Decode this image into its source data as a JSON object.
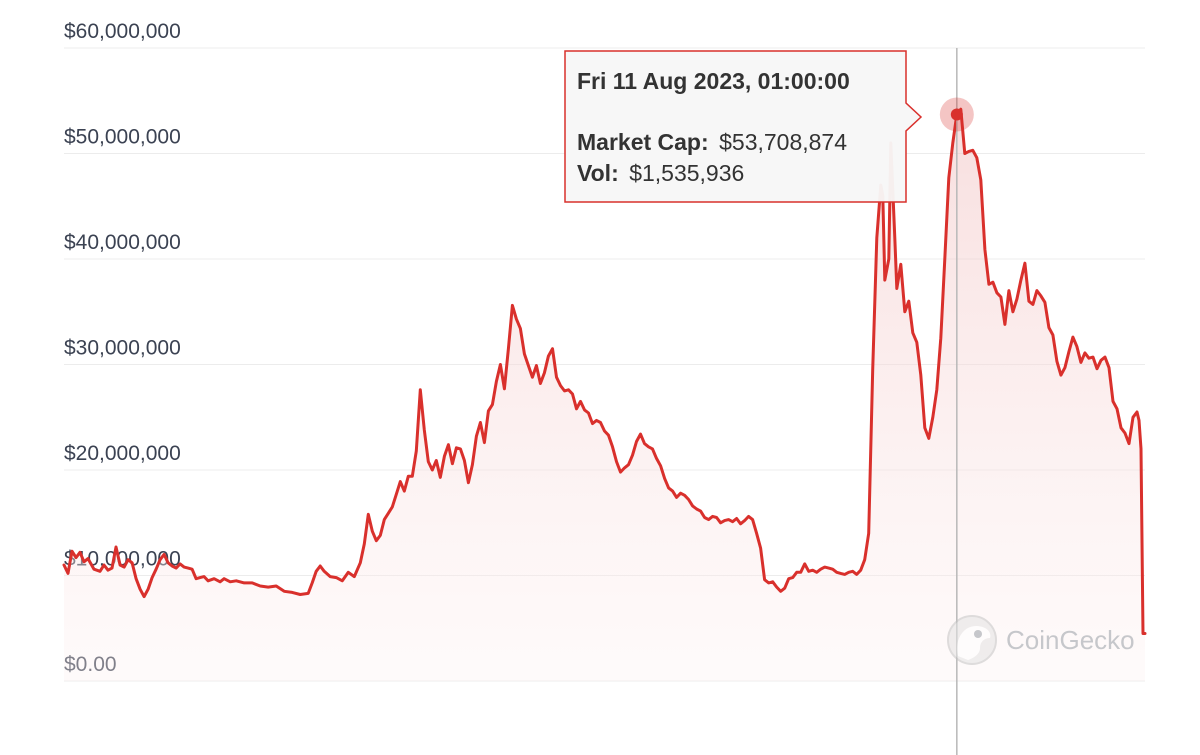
{
  "chart_data": {
    "type": "area",
    "y_ticks": [
      {
        "value": 0,
        "label": "$0.00"
      },
      {
        "value": 10000000,
        "label": "$10,000,000"
      },
      {
        "value": 20000000,
        "label": "$20,000,000"
      },
      {
        "value": 30000000,
        "label": "$30,000,000"
      },
      {
        "value": 40000000,
        "label": "$40,000,000"
      },
      {
        "value": 50000000,
        "label": "$50,000,000"
      },
      {
        "value": 60000000,
        "label": "$60,000,000"
      }
    ],
    "ylim": [
      0,
      60000000
    ],
    "x_index_range": [
      0,
      540
    ],
    "grid": true,
    "series": [
      {
        "color": "#d9302c",
        "fill": "#f6d6d6",
        "points": [
          [
            0,
            11000000
          ],
          [
            2,
            10200000
          ],
          [
            4,
            12300000
          ],
          [
            6,
            11700000
          ],
          [
            8,
            12200000
          ],
          [
            10,
            11300000
          ],
          [
            12,
            11600000
          ],
          [
            15,
            10600000
          ],
          [
            18,
            10400000
          ],
          [
            20,
            11000000
          ],
          [
            22,
            10500000
          ],
          [
            24,
            10700000
          ],
          [
            26,
            12700000
          ],
          [
            28,
            11000000
          ],
          [
            30,
            10800000
          ],
          [
            32,
            11500000
          ],
          [
            34,
            11200000
          ],
          [
            36,
            9700000
          ],
          [
            38,
            8700000
          ],
          [
            40,
            8000000
          ],
          [
            42,
            8700000
          ],
          [
            44,
            9800000
          ],
          [
            46,
            10600000
          ],
          [
            48,
            11500000
          ],
          [
            50,
            12000000
          ],
          [
            52,
            11200000
          ],
          [
            54,
            10900000
          ],
          [
            56,
            10700000
          ],
          [
            58,
            11100000
          ],
          [
            60,
            10800000
          ],
          [
            62,
            10700000
          ],
          [
            64,
            10600000
          ],
          [
            66,
            9700000
          ],
          [
            68,
            9800000
          ],
          [
            70,
            9900000
          ],
          [
            72,
            9500000
          ],
          [
            75,
            9700000
          ],
          [
            78,
            9400000
          ],
          [
            80,
            9700000
          ],
          [
            83,
            9400000
          ],
          [
            86,
            9500000
          ],
          [
            90,
            9300000
          ],
          [
            94,
            9300000
          ],
          [
            98,
            9000000
          ],
          [
            102,
            8900000
          ],
          [
            106,
            9000000
          ],
          [
            110,
            8500000
          ],
          [
            114,
            8400000
          ],
          [
            118,
            8200000
          ],
          [
            122,
            8300000
          ],
          [
            124,
            9300000
          ],
          [
            126,
            10400000
          ],
          [
            128,
            10900000
          ],
          [
            130,
            10400000
          ],
          [
            133,
            9900000
          ],
          [
            136,
            9800000
          ],
          [
            139,
            9500000
          ],
          [
            142,
            10300000
          ],
          [
            145,
            9900000
          ],
          [
            148,
            11200000
          ],
          [
            150,
            13000000
          ],
          [
            152,
            15800000
          ],
          [
            154,
            14200000
          ],
          [
            156,
            13300000
          ],
          [
            158,
            13800000
          ],
          [
            160,
            15300000
          ],
          [
            162,
            15900000
          ],
          [
            164,
            16500000
          ],
          [
            166,
            17700000
          ],
          [
            168,
            18900000
          ],
          [
            170,
            18000000
          ],
          [
            172,
            19400000
          ],
          [
            174,
            19400000
          ],
          [
            176,
            21800000
          ],
          [
            178,
            27600000
          ],
          [
            180,
            23800000
          ],
          [
            182,
            20800000
          ],
          [
            184,
            20000000
          ],
          [
            186,
            20900000
          ],
          [
            188,
            19300000
          ],
          [
            190,
            21300000
          ],
          [
            192,
            22400000
          ],
          [
            194,
            20600000
          ],
          [
            196,
            22100000
          ],
          [
            198,
            22000000
          ],
          [
            200,
            20900000
          ],
          [
            202,
            18800000
          ],
          [
            204,
            20500000
          ],
          [
            206,
            23200000
          ],
          [
            208,
            24500000
          ],
          [
            210,
            22600000
          ],
          [
            212,
            25600000
          ],
          [
            214,
            26200000
          ],
          [
            216,
            28400000
          ],
          [
            218,
            30000000
          ],
          [
            220,
            27700000
          ],
          [
            222,
            31500000
          ],
          [
            224,
            35600000
          ],
          [
            226,
            34300000
          ],
          [
            228,
            33400000
          ],
          [
            230,
            31000000
          ],
          [
            232,
            29900000
          ],
          [
            234,
            28800000
          ],
          [
            236,
            29900000
          ],
          [
            238,
            28200000
          ],
          [
            240,
            29200000
          ],
          [
            242,
            30800000
          ],
          [
            244,
            31500000
          ],
          [
            246,
            28800000
          ],
          [
            248,
            28000000
          ],
          [
            250,
            27500000
          ],
          [
            252,
            27600000
          ],
          [
            254,
            27200000
          ],
          [
            256,
            25800000
          ],
          [
            258,
            26500000
          ],
          [
            260,
            25700000
          ],
          [
            262,
            25400000
          ],
          [
            264,
            24400000
          ],
          [
            266,
            24700000
          ],
          [
            268,
            24500000
          ],
          [
            270,
            23700000
          ],
          [
            272,
            23300000
          ],
          [
            274,
            22200000
          ],
          [
            276,
            20800000
          ],
          [
            278,
            19800000
          ],
          [
            280,
            20200000
          ],
          [
            282,
            20500000
          ],
          [
            284,
            21400000
          ],
          [
            286,
            22700000
          ],
          [
            288,
            23400000
          ],
          [
            290,
            22500000
          ],
          [
            292,
            22200000
          ],
          [
            294,
            22000000
          ],
          [
            296,
            21100000
          ],
          [
            298,
            20400000
          ],
          [
            300,
            19200000
          ],
          [
            302,
            18300000
          ],
          [
            304,
            18000000
          ],
          [
            306,
            17400000
          ],
          [
            308,
            17800000
          ],
          [
            310,
            17600000
          ],
          [
            312,
            17200000
          ],
          [
            314,
            16600000
          ],
          [
            316,
            16300000
          ],
          [
            318,
            16100000
          ],
          [
            320,
            15500000
          ],
          [
            322,
            15300000
          ],
          [
            324,
            15600000
          ],
          [
            326,
            15500000
          ],
          [
            328,
            15000000
          ],
          [
            330,
            15200000
          ],
          [
            332,
            15300000
          ],
          [
            334,
            15100000
          ],
          [
            336,
            15400000
          ],
          [
            338,
            14900000
          ],
          [
            340,
            15200000
          ],
          [
            342,
            15600000
          ],
          [
            344,
            15300000
          ],
          [
            346,
            14000000
          ],
          [
            348,
            12600000
          ],
          [
            350,
            9600000
          ],
          [
            352,
            9300000
          ],
          [
            354,
            9400000
          ],
          [
            356,
            8900000
          ],
          [
            358,
            8500000
          ],
          [
            360,
            8800000
          ],
          [
            362,
            9700000
          ],
          [
            364,
            9800000
          ],
          [
            366,
            10300000
          ],
          [
            368,
            10300000
          ],
          [
            370,
            11100000
          ],
          [
            372,
            10400000
          ],
          [
            374,
            10500000
          ],
          [
            376,
            10300000
          ],
          [
            378,
            10600000
          ],
          [
            380,
            10800000
          ],
          [
            382,
            10700000
          ],
          [
            384,
            10600000
          ],
          [
            386,
            10300000
          ],
          [
            388,
            10200000
          ],
          [
            390,
            10100000
          ],
          [
            392,
            10300000
          ],
          [
            394,
            10400000
          ],
          [
            396,
            10100000
          ],
          [
            398,
            10500000
          ],
          [
            400,
            11500000
          ],
          [
            402,
            14000000
          ],
          [
            404,
            29500000
          ],
          [
            406,
            42000000
          ],
          [
            408,
            47000000
          ],
          [
            409,
            46000000
          ],
          [
            410,
            38000000
          ],
          [
            412,
            40000000
          ],
          [
            413,
            51000000
          ],
          [
            415,
            42000000
          ],
          [
            416,
            37200000
          ],
          [
            418,
            39500000
          ],
          [
            420,
            35000000
          ],
          [
            422,
            36000000
          ],
          [
            424,
            33000000
          ],
          [
            426,
            32100000
          ],
          [
            428,
            29000000
          ],
          [
            430,
            24000000
          ],
          [
            432,
            23000000
          ],
          [
            434,
            25000000
          ],
          [
            436,
            27600000
          ],
          [
            438,
            32500000
          ],
          [
            440,
            40000000
          ],
          [
            442,
            47700000
          ],
          [
            444,
            51000000
          ],
          [
            446,
            53700000
          ],
          [
            448,
            54200000
          ],
          [
            450,
            50000000
          ],
          [
            452,
            50200000
          ],
          [
            454,
            50300000
          ],
          [
            456,
            49600000
          ],
          [
            458,
            47500000
          ],
          [
            460,
            40900000
          ],
          [
            462,
            37600000
          ],
          [
            464,
            37800000
          ],
          [
            466,
            36800000
          ],
          [
            468,
            36400000
          ],
          [
            470,
            33800000
          ],
          [
            472,
            37000000
          ],
          [
            474,
            35000000
          ],
          [
            476,
            36200000
          ],
          [
            478,
            38000000
          ],
          [
            480,
            39600000
          ],
          [
            482,
            36000000
          ],
          [
            484,
            35700000
          ],
          [
            486,
            37000000
          ],
          [
            488,
            36500000
          ],
          [
            490,
            35900000
          ],
          [
            492,
            33500000
          ],
          [
            494,
            32800000
          ],
          [
            496,
            30300000
          ],
          [
            498,
            29000000
          ],
          [
            500,
            29700000
          ],
          [
            502,
            31200000
          ],
          [
            504,
            32600000
          ],
          [
            506,
            31700000
          ],
          [
            508,
            30200000
          ],
          [
            510,
            31100000
          ],
          [
            512,
            30600000
          ],
          [
            514,
            30700000
          ],
          [
            516,
            29600000
          ],
          [
            518,
            30400000
          ],
          [
            520,
            30700000
          ],
          [
            522,
            29700000
          ],
          [
            524,
            26500000
          ],
          [
            526,
            25800000
          ],
          [
            528,
            24000000
          ],
          [
            530,
            23500000
          ],
          [
            532,
            22500000
          ],
          [
            534,
            25000000
          ],
          [
            536,
            25500000
          ],
          [
            537,
            24700000
          ],
          [
            538,
            22000000
          ],
          [
            539,
            4500000
          ],
          [
            540,
            4500000
          ]
        ]
      }
    ],
    "hover": {
      "index": 446,
      "value": 53700000,
      "title": "Fri 11 Aug 2023, 01:00:00",
      "market_cap_label": "Market Cap:",
      "market_cap_value": "$53,708,874",
      "vol_label": "Vol:",
      "vol_value": "$1,535,936"
    },
    "watermark": "CoinGecko"
  }
}
